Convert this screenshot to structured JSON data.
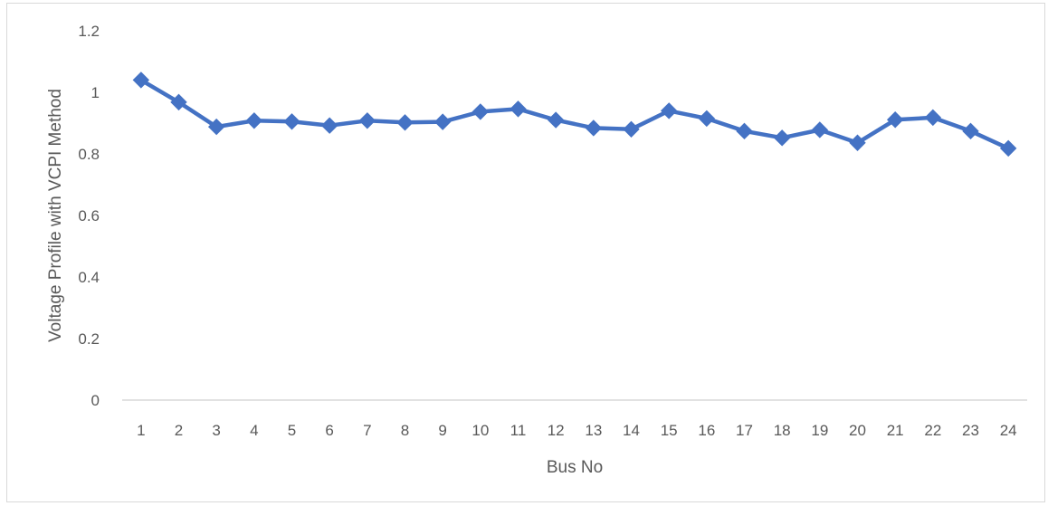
{
  "chart_data": {
    "type": "line",
    "title": "",
    "xlabel": "Bus No",
    "ylabel": "Voltage Profile with VCPI Method",
    "categories": [
      "1",
      "2",
      "3",
      "4",
      "5",
      "6",
      "7",
      "8",
      "9",
      "10",
      "11",
      "12",
      "13",
      "14",
      "15",
      "16",
      "17",
      "18",
      "19",
      "20",
      "21",
      "22",
      "23",
      "24"
    ],
    "yticks": [
      "0",
      "0.2",
      "0.4",
      "0.6",
      "0.8",
      "1",
      "1.2"
    ],
    "ylim": [
      0,
      1.2
    ],
    "grid": false,
    "legend": "none",
    "series": [
      {
        "values": [
          1.04,
          0.968,
          0.888,
          0.908,
          0.905,
          0.892,
          0.908,
          0.902,
          0.904,
          0.937,
          0.946,
          0.91,
          0.884,
          0.88,
          0.94,
          0.915,
          0.874,
          0.852,
          0.878,
          0.836,
          0.911,
          0.918,
          0.874,
          0.818
        ],
        "color": "#4472C4",
        "marker": "diamond"
      }
    ]
  }
}
